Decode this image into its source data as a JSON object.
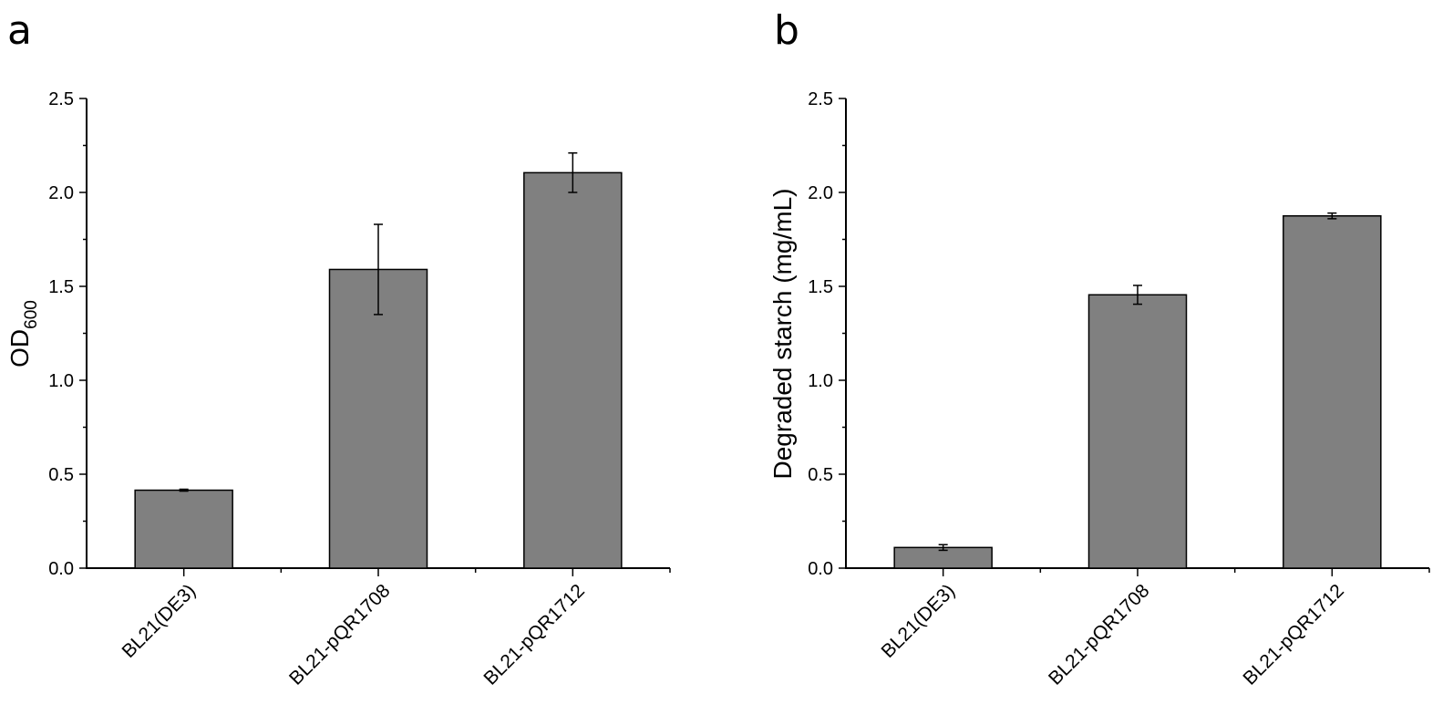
{
  "chart_data": [
    {
      "type": "bar",
      "panel_label": "a",
      "categories": [
        "BL21(DE3)",
        "BL21-pQR1708",
        "BL21-pQR1712"
      ],
      "values": [
        0.415,
        1.59,
        2.105
      ],
      "errors": [
        0.005,
        0.24,
        0.105
      ],
      "ylabel": "OD",
      "ylabel_sub": "600",
      "ylim": [
        0,
        2.5
      ],
      "yticks": [
        "0.0",
        "0.5",
        "1.0",
        "1.5",
        "2.0",
        "2.5"
      ],
      "bar_color": "#808080"
    },
    {
      "type": "bar",
      "panel_label": "b",
      "categories": [
        "BL21(DE3)",
        "BL21-pQR1708",
        "BL21-pQR1712"
      ],
      "values": [
        0.11,
        1.455,
        1.875
      ],
      "errors": [
        0.015,
        0.05,
        0.015
      ],
      "ylabel": "Degraded starch (mg/mL)",
      "ylim": [
        0,
        2.5
      ],
      "yticks": [
        "0.0",
        "0.5",
        "1.0",
        "1.5",
        "2.0",
        "2.5"
      ],
      "bar_color": "#808080"
    }
  ]
}
